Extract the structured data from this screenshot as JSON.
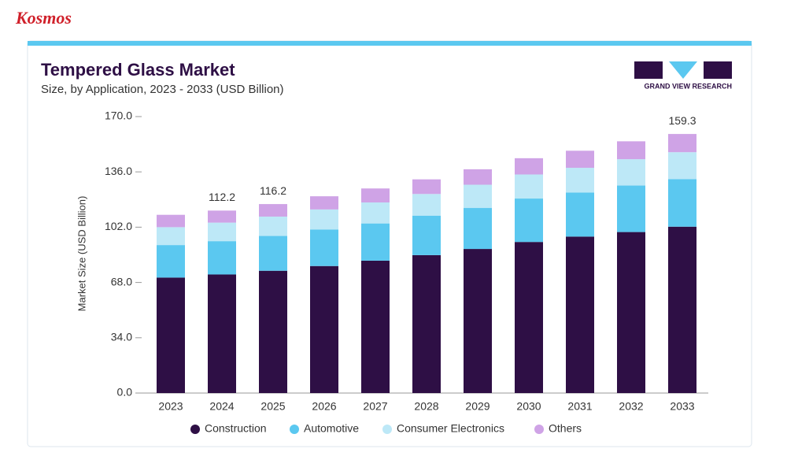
{
  "brand": "Kosmos",
  "logo_text": "GRAND VIEW RESEARCH",
  "chart_data": {
    "type": "stacked_bar",
    "title": "Tempered Glass Market",
    "subtitle": "Size, by Application, 2023 - 2033 (USD Billion)",
    "y_label": "Market Size (USD Billion)",
    "categories": [
      "2023",
      "2024",
      "2025",
      "2026",
      "2027",
      "2028",
      "2029",
      "2030",
      "2031",
      "2032",
      "2033"
    ],
    "series": [
      {
        "name": "Construction",
        "color": "#2e0f45",
        "values": [
          71.0,
          72.9,
          75.2,
          78.1,
          81.4,
          84.8,
          88.6,
          92.9,
          96.2,
          99.0,
          102.3
        ]
      },
      {
        "name": "Automotive",
        "color": "#5bc8f0",
        "values": [
          20.0,
          20.5,
          21.4,
          22.4,
          22.9,
          24.3,
          25.2,
          26.7,
          27.1,
          28.6,
          29.2
        ]
      },
      {
        "name": "Consumer Electronics",
        "color": "#bde8f7",
        "values": [
          11.0,
          11.4,
          11.9,
          12.4,
          12.9,
          13.3,
          14.3,
          14.8,
          15.2,
          16.2,
          16.6
        ]
      },
      {
        "name": "Others",
        "color": "#cfa3e6",
        "values": [
          7.6,
          7.4,
          7.7,
          8.1,
          8.6,
          9.0,
          9.5,
          10.0,
          10.5,
          11.0,
          11.2
        ]
      }
    ],
    "totals": [
      null,
      112.2,
      116.2,
      null,
      null,
      null,
      null,
      null,
      null,
      null,
      159.3
    ],
    "ylim": [
      0,
      170
    ],
    "yticks": [
      {
        "value": 0,
        "label": "0.0"
      },
      {
        "value": 34,
        "label": "34.0"
      },
      {
        "value": 68,
        "label": "68.0"
      },
      {
        "value": 102,
        "label": "102.0"
      },
      {
        "value": 136,
        "label": "136.0"
      },
      {
        "value": 170,
        "label": "170.0"
      }
    ],
    "grid": false
  }
}
